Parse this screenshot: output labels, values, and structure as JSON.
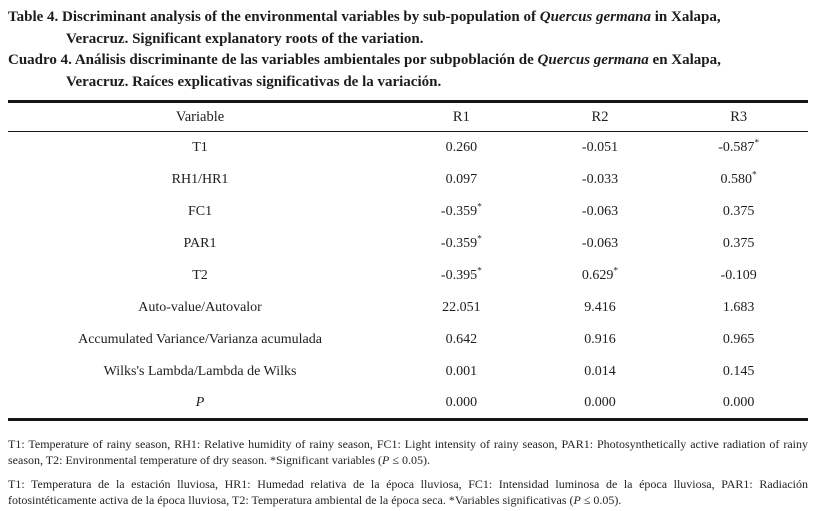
{
  "colors": {
    "text": "#1e1e1e",
    "rule": "#161616",
    "background": "#ffffff"
  },
  "title_en": {
    "line1_before_italic": "Table 4. Discriminant analysis of the environmental variables by sub-population of ",
    "line1_italic": "Quercus germana",
    "line1_after_italic": " in Xalapa,",
    "line2": "Veracruz. Significant explanatory roots of the variation."
  },
  "title_es": {
    "line1_before_italic": "Cuadro 4. Análisis discriminante de las variables ambientales por subpoblación de ",
    "line1_italic": "Quercus germana",
    "line1_after_italic": " en Xalapa,",
    "line2": "Veracruz. Raíces explicativas significativas de la variación."
  },
  "table": {
    "columns": [
      "Variable",
      "R1",
      "R2",
      "R3"
    ],
    "rows": [
      {
        "variable": "T1",
        "italic": false,
        "values": [
          {
            "text": "0.260"
          },
          {
            "text": "-0.051"
          },
          {
            "text": "-0.587",
            "star": "*"
          }
        ]
      },
      {
        "variable": "RH1/HR1",
        "italic": false,
        "values": [
          {
            "text": "0.097"
          },
          {
            "text": "-0.033"
          },
          {
            "text": "0.580",
            "star": "*"
          }
        ]
      },
      {
        "variable": "FC1",
        "italic": false,
        "values": [
          {
            "text": "-0.359",
            "star": "*"
          },
          {
            "text": "-0.063"
          },
          {
            "text": "0.375"
          }
        ]
      },
      {
        "variable": "PAR1",
        "italic": false,
        "values": [
          {
            "text": "-0.359",
            "star": "*"
          },
          {
            "text": "-0.063"
          },
          {
            "text": "0.375"
          }
        ]
      },
      {
        "variable": "T2",
        "italic": false,
        "values": [
          {
            "text": "-0.395",
            "star": "*"
          },
          {
            "text": "0.629",
            "star": "*"
          },
          {
            "text": "-0.109"
          }
        ]
      },
      {
        "variable": "Auto-value/Autovalor",
        "italic": false,
        "values": [
          {
            "text": "22.051"
          },
          {
            "text": "9.416"
          },
          {
            "text": "1.683"
          }
        ]
      },
      {
        "variable": "Accumulated Variance/Varianza acumulada",
        "italic": false,
        "values": [
          {
            "text": "0.642"
          },
          {
            "text": "0.916"
          },
          {
            "text": "0.965"
          }
        ]
      },
      {
        "variable": "Wilks's Lambda/Lambda de Wilks",
        "italic": false,
        "values": [
          {
            "text": "0.001"
          },
          {
            "text": "0.014"
          },
          {
            "text": "0.145"
          }
        ]
      },
      {
        "variable": "P",
        "italic": true,
        "values": [
          {
            "text": "0.000"
          },
          {
            "text": "0.000"
          },
          {
            "text": "0.000"
          }
        ]
      }
    ]
  },
  "footnote_en": {
    "before_p": "T1: Temperature of rainy season, RH1: Relative humidity of rainy season, FC1: Light intensity of rainy season, PAR1: Photosynthetically active radiation of rainy season, T2: Environmental temperature of dry season. *Significant variables (",
    "p": "P",
    "after_p": " ≤ 0.05)."
  },
  "footnote_es": {
    "before_p": "T1: Temperatura de la estación lluviosa, HR1: Humedad relativa de la época lluviosa, FC1: Intensidad luminosa de la época lluviosa, PAR1: Radiación fotosintéticamente activa de la época lluviosa, T2: Temperatura ambiental de la época seca. *Variables significativas (",
    "p": "P",
    "after_p": " ≤ 0.05)."
  }
}
